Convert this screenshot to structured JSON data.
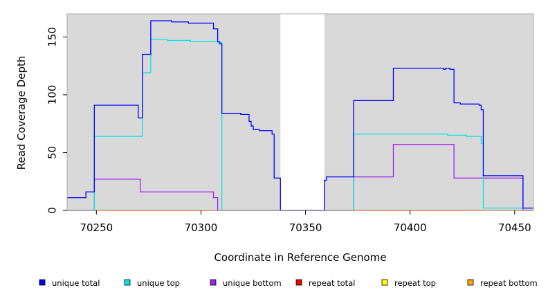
{
  "chart_data": {
    "type": "line",
    "xlabel": "Coordinate in Reference Genome",
    "ylabel": "Read Coverage Depth",
    "xlim": [
      70236,
      70459
    ],
    "ylim": [
      0,
      170
    ],
    "x_ticks": [
      70250,
      70300,
      70350,
      70400,
      70450
    ],
    "y_ticks": [
      0,
      50,
      100,
      150
    ],
    "background_color": "#d9d9d9",
    "gap_region": [
      70338,
      70359
    ],
    "grid": false,
    "legend_position": "bottom",
    "series": [
      {
        "name": "unique total",
        "color": "#0000ff",
        "step": [
          [
            70236,
            11
          ],
          [
            70245,
            16
          ],
          [
            70249,
            91
          ],
          [
            70270,
            80
          ],
          [
            70272,
            135
          ],
          [
            70276,
            164
          ],
          [
            70286,
            163
          ],
          [
            70294,
            162
          ],
          [
            70306,
            157
          ],
          [
            70308,
            146
          ],
          [
            70309,
            144
          ],
          [
            70310,
            84
          ],
          [
            70319,
            83
          ],
          [
            70323,
            77
          ],
          [
            70324,
            73
          ],
          [
            70325,
            70
          ],
          [
            70328,
            69
          ],
          [
            70334,
            66
          ],
          [
            70335,
            28
          ],
          [
            70338,
            0
          ],
          [
            70359,
            26
          ],
          [
            70360,
            29
          ],
          [
            70373,
            95
          ],
          [
            70392,
            123
          ],
          [
            70416,
            122
          ],
          [
            70417,
            123
          ],
          [
            70419,
            122
          ],
          [
            70421,
            93
          ],
          [
            70424,
            92
          ],
          [
            70433,
            91
          ],
          [
            70434,
            87
          ],
          [
            70435,
            30
          ],
          [
            70454,
            2
          ],
          [
            70459,
            2
          ]
        ]
      },
      {
        "name": "unique top",
        "color": "#00e5e5",
        "step": [
          [
            70236,
            0
          ],
          [
            70249,
            64
          ],
          [
            70272,
            119
          ],
          [
            70276,
            148
          ],
          [
            70284,
            147
          ],
          [
            70295,
            146
          ],
          [
            70308,
            145
          ],
          [
            70310,
            0
          ],
          [
            70338,
            0
          ],
          [
            70359,
            0
          ],
          [
            70373,
            66
          ],
          [
            70418,
            65
          ],
          [
            70427,
            64
          ],
          [
            70434,
            58
          ],
          [
            70435,
            2
          ],
          [
            70454,
            2
          ],
          [
            70459,
            2
          ]
        ]
      },
      {
        "name": "unique bottom",
        "color": "#a020f0",
        "step": [
          [
            70236,
            0
          ],
          [
            70249,
            27
          ],
          [
            70271,
            16
          ],
          [
            70306,
            11
          ],
          [
            70308,
            0
          ],
          [
            70359,
            0
          ],
          [
            70373,
            29
          ],
          [
            70392,
            57
          ],
          [
            70421,
            28
          ],
          [
            70454,
            0
          ],
          [
            70459,
            0
          ]
        ]
      },
      {
        "name": "repeat total",
        "color": "#ff0000",
        "step": [
          [
            70236,
            0
          ],
          [
            70459,
            0
          ]
        ]
      },
      {
        "name": "repeat top",
        "color": "#ffff00",
        "step": [
          [
            70236,
            0
          ],
          [
            70459,
            0
          ]
        ]
      },
      {
        "name": "repeat bottom",
        "color": "#ffa500",
        "step": [
          [
            70236,
            0
          ],
          [
            70459,
            0
          ]
        ]
      }
    ]
  }
}
